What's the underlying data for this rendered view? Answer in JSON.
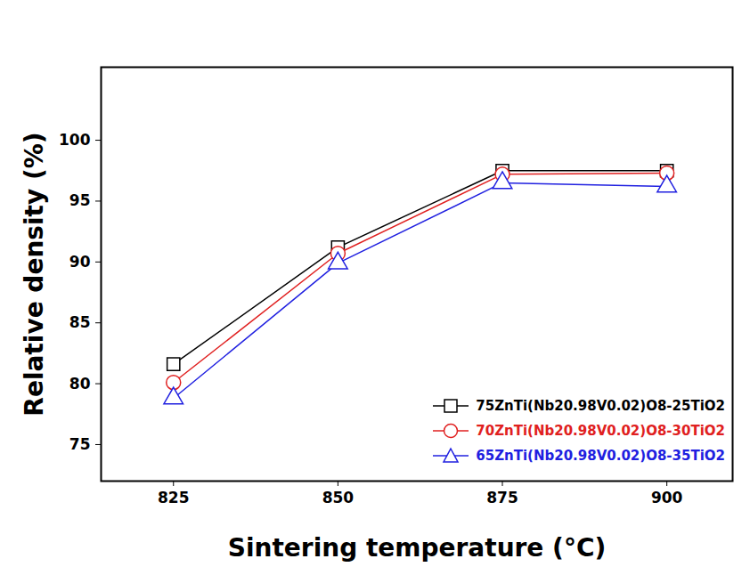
{
  "chart_data": {
    "type": "line",
    "x_label": "Sintering temperature (°C)",
    "y_label": "Relative density (%)",
    "x": [
      825,
      850,
      875,
      900
    ],
    "series": [
      {
        "name": "75ZnTi(Nb20.98V0.02)O8-25TiO2",
        "color": "#000000",
        "marker": "square",
        "values": [
          81.6,
          91.2,
          97.5,
          97.5
        ]
      },
      {
        "name": "70ZnTi(Nb20.98V0.02)O8-30TiO2",
        "color": "#e02020",
        "marker": "circle",
        "values": [
          80.1,
          90.7,
          97.2,
          97.3
        ]
      },
      {
        "name": "65ZnTi(Nb20.98V0.02)O8-35TiO2",
        "color": "#2020e0",
        "marker": "triangle",
        "values": [
          78.8,
          89.9,
          96.5,
          96.2
        ]
      }
    ],
    "xlim": [
      814,
      910
    ],
    "xticks": [
      825,
      850,
      875,
      900
    ],
    "ylim": [
      72,
      106
    ],
    "yticks": [
      75,
      80,
      85,
      90,
      95,
      100
    ],
    "grid": false,
    "legend": "lower right"
  }
}
